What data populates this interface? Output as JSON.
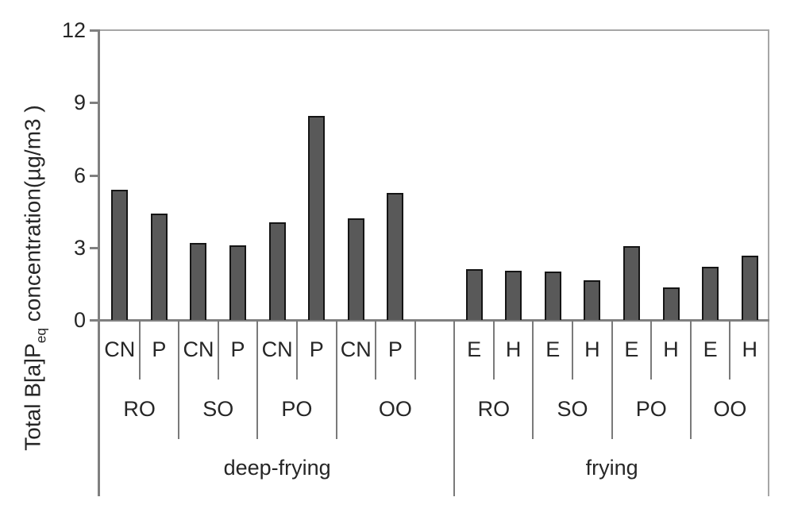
{
  "y_axis_title": {
    "prefix": "Total B[a]P",
    "sub": "eq",
    "suffix": " concentration(µg/m3 )"
  },
  "chart_data": {
    "type": "bar",
    "title": "",
    "ylabel": "Total B[a]P_eq concentration(µg/m3)",
    "xlabel": "",
    "ylim": [
      0,
      12
    ],
    "yticks": [
      0,
      3,
      6,
      9,
      12
    ],
    "grid": "off",
    "legend": "none",
    "bar_color": "#595959",
    "bar_outline_color": "#151515",
    "groups": [
      {
        "label": "deep-frying",
        "oils": [
          {
            "label": "RO",
            "bars": [
              {
                "label": "CN",
                "value": 5.4
              },
              {
                "label": "P",
                "value": 4.4
              }
            ]
          },
          {
            "label": "SO",
            "bars": [
              {
                "label": "CN",
                "value": 3.2
              },
              {
                "label": "P",
                "value": 3.1
              }
            ]
          },
          {
            "label": "PO",
            "bars": [
              {
                "label": "CN",
                "value": 4.05
              },
              {
                "label": "P",
                "value": 8.45
              }
            ]
          },
          {
            "label": "OO",
            "bars": [
              {
                "label": "CN",
                "value": 4.2
              },
              {
                "label": "P",
                "value": 5.25
              },
              {
                "label": "",
                "value": null
              }
            ]
          }
        ]
      },
      {
        "label": "frying",
        "oils": [
          {
            "label": "RO",
            "bars": [
              {
                "label": "E",
                "value": 2.1
              },
              {
                "label": "H",
                "value": 2.05
              }
            ]
          },
          {
            "label": "SO",
            "bars": [
              {
                "label": "E",
                "value": 2.0
              },
              {
                "label": "H",
                "value": 1.65
              }
            ]
          },
          {
            "label": "PO",
            "bars": [
              {
                "label": "E",
                "value": 3.05
              },
              {
                "label": "H",
                "value": 1.35
              }
            ]
          },
          {
            "label": "OO",
            "bars": [
              {
                "label": "E",
                "value": 2.2
              },
              {
                "label": "H",
                "value": 2.65
              }
            ]
          }
        ]
      }
    ]
  }
}
